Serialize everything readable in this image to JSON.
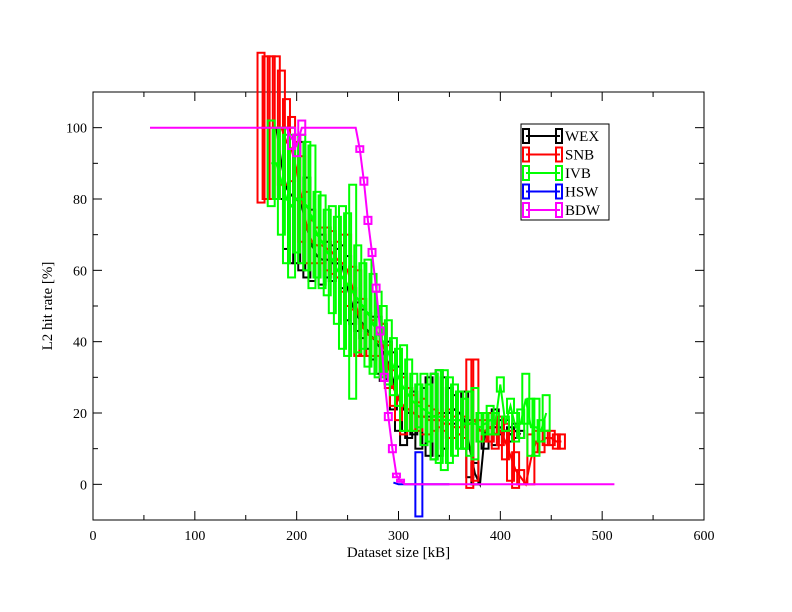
{
  "chart_data": {
    "type": "line",
    "xlabel": "Dataset size [kB]",
    "ylabel": "L2 hit rate [%]",
    "xlim": [
      0,
      600
    ],
    "ylim": [
      -10,
      110
    ],
    "xticks": [
      0,
      100,
      200,
      300,
      400,
      500,
      600
    ],
    "yticks": [
      0,
      20,
      40,
      60,
      80,
      100
    ],
    "grid": false,
    "legend_position": "top-right",
    "series": [
      {
        "name": "WEX",
        "color": "#000000",
        "x": [
          180,
          185,
          190,
          195,
          200,
          205,
          210,
          215,
          220,
          225,
          230,
          235,
          240,
          245,
          250,
          255,
          260,
          265,
          270,
          275,
          280,
          285,
          290,
          295,
          300,
          305,
          310,
          315,
          320,
          325,
          330,
          335,
          340,
          345,
          350,
          355,
          360,
          365,
          370,
          375,
          380,
          385,
          390,
          395,
          400,
          405,
          410,
          415,
          420
        ],
        "y": [
          100,
          90,
          83,
          81,
          80,
          78,
          72,
          67,
          64,
          63,
          63,
          62,
          62,
          61,
          55,
          50,
          47,
          45,
          43,
          41,
          39,
          37,
          34,
          29,
          24,
          21,
          20,
          20,
          19,
          19,
          19,
          19,
          20,
          20,
          20,
          21,
          20,
          18,
          10,
          3,
          0,
          15,
          16,
          16,
          16,
          15,
          14,
          15,
          14
        ],
        "err": [
          0,
          10,
          17,
          19,
          18,
          18,
          14,
          10,
          6,
          7,
          5,
          5,
          4,
          6,
          9,
          5,
          4,
          4,
          5,
          6,
          8,
          8,
          6,
          8,
          9,
          10,
          7,
          6,
          9,
          8,
          11,
          12,
          12,
          10,
          7,
          4,
          6,
          8,
          8,
          3,
          0,
          5,
          4,
          5,
          2,
          3,
          2,
          2,
          1
        ]
      },
      {
        "name": "SNB",
        "color": "#ff0000",
        "x": [
          165,
          170,
          175,
          180,
          185,
          190,
          195,
          200,
          205,
          210,
          215,
          220,
          225,
          230,
          235,
          240,
          245,
          250,
          255,
          260,
          265,
          270,
          275,
          280,
          285,
          290,
          295,
          300,
          305,
          310,
          315,
          320,
          325,
          330,
          335,
          340,
          345,
          350,
          355,
          360,
          365,
          370,
          375,
          380,
          385,
          390,
          395,
          400,
          405,
          410,
          415,
          420,
          425,
          430,
          435,
          440,
          445,
          450,
          455,
          460
        ],
        "y": [
          100,
          100,
          100,
          100,
          100,
          96,
          94,
          88,
          80,
          72,
          68,
          67,
          67,
          66,
          65,
          63,
          62,
          60,
          55,
          48,
          44,
          42,
          41,
          40,
          39,
          33,
          27,
          24,
          22,
          21,
          20,
          19,
          19,
          18,
          18,
          18,
          17,
          17,
          16,
          16,
          16,
          17,
          18,
          15,
          15,
          16,
          14,
          15,
          12,
          8,
          4,
          2,
          0,
          7,
          12,
          12,
          13,
          13,
          12,
          12
        ],
        "err": [
          21,
          20,
          20,
          20,
          16,
          12,
          9,
          8,
          12,
          10,
          6,
          5,
          5,
          6,
          6,
          5,
          8,
          10,
          6,
          12,
          8,
          6,
          5,
          4,
          6,
          6,
          5,
          6,
          8,
          6,
          5,
          4,
          5,
          4,
          3,
          2,
          2,
          4,
          3,
          2,
          3,
          18,
          17,
          3,
          3,
          4,
          4,
          4,
          5,
          7,
          5,
          2,
          0,
          7,
          3,
          3,
          2,
          2,
          2,
          2
        ]
      },
      {
        "name": "IVB",
        "color": "#00ff00",
        "x": [
          175,
          180,
          185,
          190,
          195,
          200,
          205,
          210,
          215,
          220,
          225,
          230,
          235,
          240,
          245,
          250,
          255,
          260,
          265,
          270,
          275,
          280,
          285,
          290,
          295,
          300,
          305,
          310,
          315,
          320,
          325,
          330,
          335,
          340,
          345,
          350,
          355,
          360,
          365,
          370,
          375,
          380,
          385,
          390,
          395,
          400,
          405,
          410,
          415,
          420,
          425,
          430,
          435,
          440,
          445
        ],
        "y": [
          90,
          90,
          85,
          80,
          78,
          80,
          80,
          78,
          75,
          70,
          68,
          65,
          63,
          60,
          58,
          56,
          54,
          52,
          50,
          48,
          45,
          42,
          40,
          37,
          33,
          30,
          27,
          25,
          23,
          22,
          21,
          20,
          19,
          19,
          18,
          18,
          18,
          18,
          17,
          17,
          17,
          16,
          17,
          18,
          17,
          28,
          17,
          22,
          16,
          17,
          24,
          16,
          16,
          15,
          20
        ],
        "err": [
          12,
          10,
          15,
          18,
          20,
          15,
          18,
          18,
          20,
          12,
          13,
          12,
          15,
          15,
          20,
          20,
          30,
          15,
          12,
          15,
          14,
          12,
          10,
          9,
          8,
          8,
          12,
          10,
          8,
          6,
          10,
          8,
          12,
          13,
          14,
          12,
          10,
          8,
          7,
          9,
          10,
          4,
          3,
          4,
          3,
          2,
          2,
          2,
          4,
          4,
          7,
          8,
          8,
          3,
          5
        ]
      },
      {
        "name": "HSW",
        "color": "#0000ff",
        "x": [
          295,
          300,
          305,
          310,
          315,
          320,
          325,
          330,
          335,
          340,
          345,
          350
        ],
        "y": [
          0.5,
          0,
          0,
          0,
          0,
          0,
          0,
          0,
          0,
          0,
          0,
          0
        ],
        "err": [
          0,
          0,
          0,
          0,
          0,
          9,
          0,
          0,
          0,
          0,
          0,
          0
        ]
      },
      {
        "name": "BDW",
        "color": "#ff00ff",
        "x": [
          56,
          100,
          150,
          180,
          190,
          195,
          200,
          205,
          210,
          250,
          258,
          262,
          266,
          270,
          274,
          278,
          282,
          286,
          290,
          294,
          298,
          302,
          306,
          320,
          400,
          460,
          512
        ],
        "y": [
          100,
          100,
          100,
          100,
          100,
          97,
          95,
          100,
          100,
          100,
          100,
          94,
          85,
          74,
          65,
          55,
          43,
          30,
          19,
          10,
          2.5,
          1,
          0,
          0,
          0,
          0,
          0
        ],
        "err": [
          0,
          0,
          0,
          0,
          0,
          3,
          3,
          2,
          0,
          0,
          0,
          0.8,
          1,
          1,
          1,
          1,
          1,
          1,
          1,
          1,
          0.5,
          0.3,
          0,
          0,
          0,
          0,
          0
        ]
      }
    ]
  }
}
